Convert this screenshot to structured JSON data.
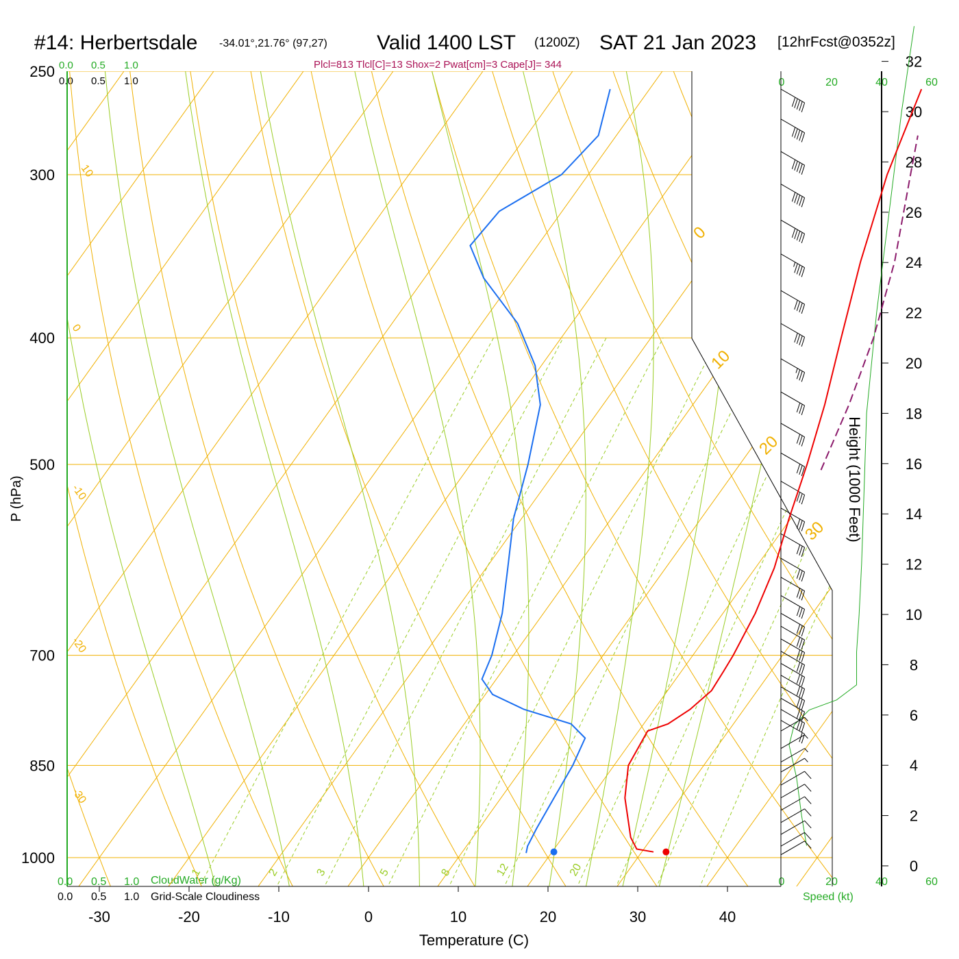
{
  "header": {
    "station": "#14: Herbertsdale",
    "coords": "-34.01°,21.76° (97,27)",
    "valid": "Valid 1400 LST",
    "zulu": "(1200Z)",
    "date": "SAT 21 Jan 2023",
    "forecast": "[12hrFcst@0352z]",
    "indices": "Plcl=813 Tlcl[C]=13 Shox=2 Pwat[cm]=3 Cape[J]= 344"
  },
  "scales": {
    "cloudwater_ticks": [
      "0.0",
      "0.5",
      "1.0"
    ],
    "cloudiness_ticks": [
      "0.0",
      "0.5",
      "1.0"
    ],
    "cloudwater_label": "CloudWater (g/Kg)",
    "cloudiness_label": "Grid-Scale Cloudiness",
    "speed_ticks": [
      "0",
      "20",
      "40",
      "60"
    ],
    "speed_label": "Speed (kt)"
  },
  "colors": {
    "temperature": "#ee0000",
    "dewpoint": "#1a6ef0",
    "parcel": "#8b1a6b",
    "isotherm": "#f0b000",
    "dry_adiabat": "#f0b000",
    "moist_adiabat": "#99cc22",
    "mixing_ratio": "#99cc22",
    "speed": "#22aa22",
    "indices_text": "#aa1155",
    "green_text": "#22aa22"
  },
  "chart_data": {
    "type": "skew-t",
    "xlabel": "Temperature (C)",
    "ylabel": "P (hPa)",
    "y2label": "Height (1000 Feet)",
    "x_ticks": [
      -30,
      -20,
      -10,
      0,
      10,
      20,
      30,
      40
    ],
    "p_ticks": [
      250,
      300,
      400,
      500,
      700,
      850,
      1000
    ],
    "xlim": [
      -33,
      48
    ],
    "plim": [
      1100,
      250
    ],
    "height_ticks": [
      0,
      2,
      4,
      6,
      8,
      10,
      12,
      14,
      16,
      18,
      20,
      22,
      24,
      26,
      28,
      30,
      32
    ],
    "isotherm_labels": [
      -30,
      -20,
      -10,
      0,
      10,
      20,
      30
    ],
    "potential_temp_labels": [
      10,
      0,
      -10,
      -20,
      -30
    ],
    "mixing_ratio_labels": [
      "1",
      "2",
      "3",
      "5",
      "8",
      "12",
      "20"
    ],
    "temperature": [
      {
        "p": 990,
        "t": 31.3
      },
      {
        "p": 985,
        "t": 29.2
      },
      {
        "p": 965,
        "t": 27.6
      },
      {
        "p": 900,
        "t": 23.8
      },
      {
        "p": 850,
        "t": 21.6
      },
      {
        "p": 800,
        "t": 21.0
      },
      {
        "p": 790,
        "t": 22.7
      },
      {
        "p": 770,
        "t": 24.0
      },
      {
        "p": 745,
        "t": 24.9
      },
      {
        "p": 720,
        "t": 24.7
      },
      {
        "p": 700,
        "t": 24.5
      },
      {
        "p": 650,
        "t": 23.6
      },
      {
        "p": 600,
        "t": 22.1
      },
      {
        "p": 550,
        "t": 19.8
      },
      {
        "p": 500,
        "t": 17.5
      },
      {
        "p": 450,
        "t": 14.7
      },
      {
        "p": 400,
        "t": 11.2
      },
      {
        "p": 350,
        "t": 7.3
      },
      {
        "p": 300,
        "t": 3.3
      },
      {
        "p": 270,
        "t": 1.2
      },
      {
        "p": 258,
        "t": 0.3
      }
    ],
    "dewpoint": [
      {
        "p": 992,
        "t": 17.2
      },
      {
        "p": 980,
        "t": 16.8
      },
      {
        "p": 950,
        "t": 16.4
      },
      {
        "p": 900,
        "t": 15.9
      },
      {
        "p": 850,
        "t": 15.4
      },
      {
        "p": 810,
        "t": 14.6
      },
      {
        "p": 790,
        "t": 11.9
      },
      {
        "p": 770,
        "t": 5.5
      },
      {
        "p": 750,
        "t": 0.8
      },
      {
        "p": 730,
        "t": -1.6
      },
      {
        "p": 700,
        "t": -2.4
      },
      {
        "p": 650,
        "t": -4.6
      },
      {
        "p": 600,
        "t": -7.6
      },
      {
        "p": 550,
        "t": -10.9
      },
      {
        "p": 500,
        "t": -13.6
      },
      {
        "p": 450,
        "t": -17.0
      },
      {
        "p": 420,
        "t": -20.7
      },
      {
        "p": 390,
        "t": -26.0
      },
      {
        "p": 360,
        "t": -33.4
      },
      {
        "p": 340,
        "t": -37.5
      },
      {
        "p": 320,
        "t": -37.0
      },
      {
        "p": 300,
        "t": -33.0
      },
      {
        "p": 280,
        "t": -32.0
      },
      {
        "p": 258,
        "t": -34.4
      }
    ],
    "parcel": [
      {
        "p": 505,
        "t": 19.5
      },
      {
        "p": 450,
        "t": 17.4
      },
      {
        "p": 400,
        "t": 14.8
      },
      {
        "p": 350,
        "t": 11.1
      },
      {
        "p": 300,
        "t": 5.9
      },
      {
        "p": 280,
        "t": 3.6
      }
    ],
    "surface_temperature": 32.7,
    "surface_dewpoint": 20.2,
    "surface_pressure": 990,
    "speed_profile_kt": [
      {
        "h": 0.8,
        "v": 10
      },
      {
        "h": 2.0,
        "v": 8
      },
      {
        "h": 3.5,
        "v": 6
      },
      {
        "h": 4.8,
        "v": 3
      },
      {
        "h": 5.6,
        "v": 5
      },
      {
        "h": 6.2,
        "v": 11
      },
      {
        "h": 6.6,
        "v": 22
      },
      {
        "h": 7.2,
        "v": 30
      },
      {
        "h": 8.5,
        "v": 30
      },
      {
        "h": 10.0,
        "v": 31
      },
      {
        "h": 12.0,
        "v": 32
      },
      {
        "h": 15.0,
        "v": 33
      },
      {
        "h": 18.0,
        "v": 34
      },
      {
        "h": 22.0,
        "v": 38
      },
      {
        "h": 26.0,
        "v": 43
      },
      {
        "h": 30.0,
        "v": 48
      },
      {
        "h": 33.4,
        "v": 53
      }
    ],
    "wind_barbs": [
      {
        "p": 995,
        "dir": 240,
        "kt": 10
      },
      {
        "p": 980,
        "dir": 240,
        "kt": 10
      },
      {
        "p": 960,
        "dir": 240,
        "kt": 10
      },
      {
        "p": 940,
        "dir": 240,
        "kt": 10
      },
      {
        "p": 920,
        "dir": 240,
        "kt": 10
      },
      {
        "p": 900,
        "dir": 240,
        "kt": 10
      },
      {
        "p": 880,
        "dir": 240,
        "kt": 10
      },
      {
        "p": 860,
        "dir": 240,
        "kt": 5
      },
      {
        "p": 845,
        "dir": 240,
        "kt": 5
      },
      {
        "p": 825,
        "dir": 240,
        "kt": 5
      },
      {
        "p": 800,
        "dir": 240,
        "kt": 5
      },
      {
        "p": 785,
        "dir": 300,
        "kt": 20
      },
      {
        "p": 770,
        "dir": 300,
        "kt": 30
      },
      {
        "p": 755,
        "dir": 300,
        "kt": 30
      },
      {
        "p": 740,
        "dir": 300,
        "kt": 30
      },
      {
        "p": 725,
        "dir": 300,
        "kt": 30
      },
      {
        "p": 710,
        "dir": 300,
        "kt": 30
      },
      {
        "p": 695,
        "dir": 300,
        "kt": 30
      },
      {
        "p": 680,
        "dir": 300,
        "kt": 30
      },
      {
        "p": 665,
        "dir": 300,
        "kt": 30
      },
      {
        "p": 650,
        "dir": 300,
        "kt": 30
      },
      {
        "p": 630,
        "dir": 300,
        "kt": 30
      },
      {
        "p": 610,
        "dir": 300,
        "kt": 30
      },
      {
        "p": 590,
        "dir": 300,
        "kt": 30
      },
      {
        "p": 565,
        "dir": 300,
        "kt": 30
      },
      {
        "p": 540,
        "dir": 300,
        "kt": 30
      },
      {
        "p": 515,
        "dir": 300,
        "kt": 30
      },
      {
        "p": 490,
        "dir": 300,
        "kt": 30
      },
      {
        "p": 465,
        "dir": 300,
        "kt": 30
      },
      {
        "p": 440,
        "dir": 300,
        "kt": 30
      },
      {
        "p": 415,
        "dir": 300,
        "kt": 35
      },
      {
        "p": 390,
        "dir": 300,
        "kt": 40
      },
      {
        "p": 368,
        "dir": 300,
        "kt": 40
      },
      {
        "p": 345,
        "dir": 300,
        "kt": 45
      },
      {
        "p": 325,
        "dir": 300,
        "kt": 50
      },
      {
        "p": 305,
        "dir": 300,
        "kt": 50
      },
      {
        "p": 288,
        "dir": 300,
        "kt": 50
      },
      {
        "p": 272,
        "dir": 300,
        "kt": 50
      },
      {
        "p": 258,
        "dir": 300,
        "kt": 50
      }
    ]
  }
}
